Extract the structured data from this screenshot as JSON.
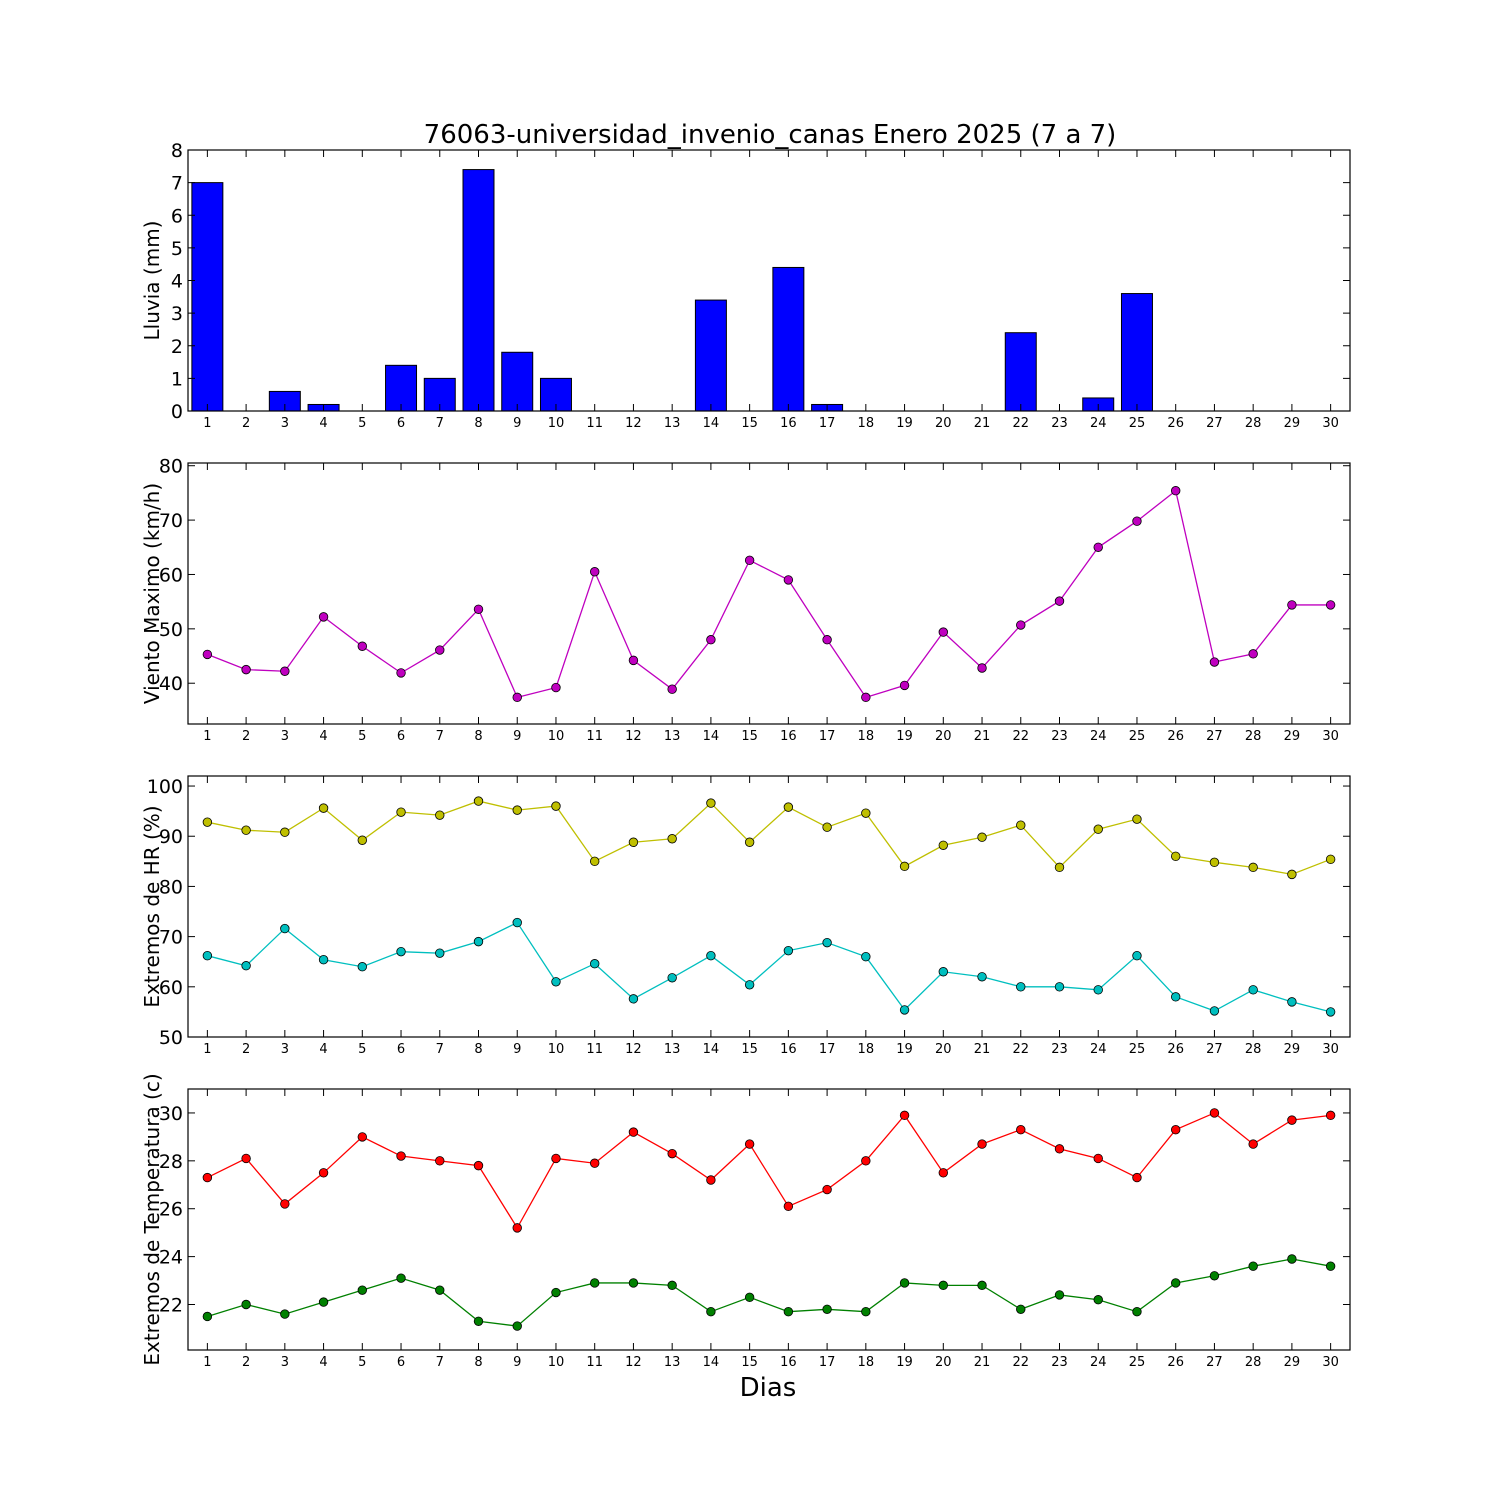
{
  "title": "76063-universidad_invenio_canas Enero 2025  (7 a 7)",
  "xlabel": "Dias",
  "chart_data": [
    {
      "type": "bar",
      "ylabel": "Lluvia (mm)",
      "ylim": [
        0,
        8
      ],
      "yticks": [
        0,
        1,
        2,
        3,
        4,
        5,
        6,
        7,
        8
      ],
      "categories": [
        1,
        2,
        3,
        4,
        5,
        6,
        7,
        8,
        9,
        10,
        11,
        12,
        13,
        14,
        15,
        16,
        17,
        18,
        19,
        20,
        21,
        22,
        23,
        24,
        25,
        26,
        27,
        28,
        29,
        30
      ],
      "values": [
        7.0,
        0,
        0.6,
        0.2,
        0,
        1.4,
        1.0,
        7.4,
        1.8,
        1.0,
        0,
        0,
        0,
        3.4,
        0,
        4.4,
        0.2,
        0,
        0,
        0,
        0,
        2.4,
        0,
        0.4,
        3.6,
        0,
        0,
        0,
        0,
        0
      ],
      "color": "#0000ff",
      "grid": false
    },
    {
      "type": "line",
      "ylabel": "Viento Maximo (km/h)",
      "ylim": [
        32.5,
        80.5
      ],
      "yticks": [
        40,
        50,
        60,
        70,
        80
      ],
      "x": [
        1,
        2,
        3,
        4,
        5,
        6,
        7,
        8,
        9,
        10,
        11,
        12,
        13,
        14,
        15,
        16,
        17,
        18,
        19,
        20,
        21,
        22,
        23,
        24,
        25,
        26,
        27,
        28,
        29,
        30
      ],
      "series": [
        {
          "values": [
            45.3,
            42.5,
            42.2,
            52.2,
            46.8,
            41.9,
            46.1,
            53.6,
            37.4,
            39.2,
            60.5,
            44.2,
            38.9,
            48.0,
            62.6,
            59.0,
            48.0,
            37.4,
            39.6,
            49.4,
            42.8,
            50.7,
            55.1,
            65.0,
            69.8,
            75.4,
            43.9,
            45.4,
            54.4,
            54.4
          ],
          "color": "#bf00bf"
        }
      ],
      "grid": false
    },
    {
      "type": "line",
      "ylabel": "Extremos de HR (%)",
      "ylim": [
        50,
        102
      ],
      "yticks": [
        50,
        60,
        70,
        80,
        90,
        100
      ],
      "x": [
        1,
        2,
        3,
        4,
        5,
        6,
        7,
        8,
        9,
        10,
        11,
        12,
        13,
        14,
        15,
        16,
        17,
        18,
        19,
        20,
        21,
        22,
        23,
        24,
        25,
        26,
        27,
        28,
        29,
        30
      ],
      "series": [
        {
          "values": [
            92.8,
            91.2,
            90.8,
            95.6,
            89.2,
            94.8,
            94.2,
            97.0,
            95.2,
            96.0,
            85.0,
            88.8,
            89.5,
            96.6,
            88.8,
            95.8,
            91.8,
            94.6,
            84.0,
            88.2,
            89.8,
            92.2,
            83.8,
            91.4,
            93.4,
            86.0,
            84.8,
            83.8,
            82.4,
            85.4
          ],
          "color": "#bfbf00"
        },
        {
          "values": [
            66.2,
            64.2,
            71.6,
            65.4,
            64.0,
            67.0,
            66.7,
            69.0,
            72.8,
            61.0,
            64.6,
            57.6,
            61.8,
            66.2,
            60.4,
            67.2,
            68.8,
            66.0,
            55.4,
            63.0,
            62.0,
            60.0,
            60.0,
            59.4,
            66.2,
            58.0,
            55.2,
            59.4,
            57.0,
            55.0
          ],
          "color": "#00bfbf"
        }
      ],
      "grid": false
    },
    {
      "type": "line",
      "ylabel": "Extremos de Temperatura (c)",
      "ylim": [
        20.1,
        31.0
      ],
      "yticks": [
        22,
        24,
        26,
        28,
        30
      ],
      "x": [
        1,
        2,
        3,
        4,
        5,
        6,
        7,
        8,
        9,
        10,
        11,
        12,
        13,
        14,
        15,
        16,
        17,
        18,
        19,
        20,
        21,
        22,
        23,
        24,
        25,
        26,
        27,
        28,
        29,
        30
      ],
      "series": [
        {
          "values": [
            27.3,
            28.1,
            26.2,
            27.5,
            29.0,
            28.2,
            28.0,
            27.8,
            25.2,
            28.1,
            27.9,
            29.2,
            28.3,
            27.2,
            28.7,
            26.1,
            26.8,
            28.0,
            29.9,
            27.5,
            28.7,
            29.3,
            28.5,
            28.1,
            27.3,
            29.3,
            30.0,
            28.7,
            29.7,
            29.9
          ],
          "color": "#ff0000"
        },
        {
          "values": [
            21.5,
            22.0,
            21.6,
            22.1,
            22.6,
            23.1,
            22.6,
            21.3,
            21.1,
            22.5,
            22.9,
            22.9,
            22.8,
            21.7,
            22.3,
            21.7,
            21.8,
            21.7,
            22.9,
            22.8,
            22.8,
            21.8,
            22.4,
            22.2,
            21.7,
            22.9,
            23.2,
            23.6,
            23.9,
            23.6
          ],
          "color": "#008000"
        }
      ],
      "grid": false
    }
  ]
}
